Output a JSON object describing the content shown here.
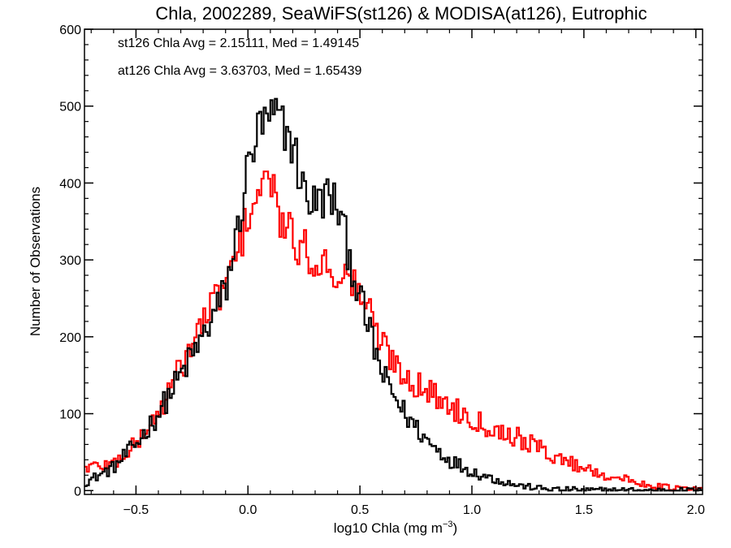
{
  "chart_data": {
    "type": "line",
    "title": "Chla, 2002289, SeaWiFS(st126) & MODISA(at126), Eutrophic",
    "xlabel_main": "log10 Chla (mg m",
    "xlabel_exp": "−3",
    "xlabel_close": ")",
    "ylabel": "Number of Observations",
    "xlim": [
      -0.73,
      2.03
    ],
    "ylim": [
      -5,
      600
    ],
    "xticks": [
      -0.5,
      0.0,
      0.5,
      1.0,
      1.5,
      2.0
    ],
    "xtick_labels": [
      "−0.5",
      "0.0",
      "0.5",
      "1.0",
      "1.5",
      "2.0"
    ],
    "yticks": [
      0,
      100,
      200,
      300,
      400,
      500,
      600
    ],
    "ytick_labels": [
      "0",
      "100",
      "200",
      "300",
      "400",
      "500",
      "600"
    ],
    "grid": false,
    "bin_width": 0.01,
    "annotations": [
      {
        "text": "st126 Chla Avg = 2.15111, Med = 1.49145",
        "color": "#000000"
      },
      {
        "text": "at126 Chla Avg = 3.63703, Med = 1.65439",
        "color": "#ff0000"
      }
    ],
    "series": [
      {
        "color": "#000000",
        "profile_x": [
          -0.73,
          -0.6,
          -0.5,
          -0.4,
          -0.3,
          -0.2,
          -0.1,
          -0.05,
          0.0,
          0.05,
          0.1,
          0.15,
          0.2,
          0.25,
          0.3,
          0.35,
          0.4,
          0.45,
          0.5,
          0.55,
          0.6,
          0.7,
          0.8,
          0.9,
          1.0,
          1.1,
          1.2,
          1.3,
          1.4,
          1.5,
          1.6,
          2.03
        ],
        "profile_y": [
          10,
          30,
          60,
          100,
          150,
          200,
          260,
          330,
          420,
          470,
          480,
          480,
          450,
          390,
          370,
          385,
          370,
          310,
          250,
          200,
          150,
          100,
          65,
          40,
          25,
          15,
          7,
          3,
          1,
          0.5,
          0.2,
          0
        ],
        "notes_peak": {
          "x": 0.14,
          "y": 495
        }
      },
      {
        "color": "#ff0000",
        "profile_x": [
          -0.73,
          -0.6,
          -0.5,
          -0.4,
          -0.3,
          -0.2,
          -0.1,
          -0.05,
          0.0,
          0.05,
          0.1,
          0.15,
          0.2,
          0.3,
          0.4,
          0.5,
          0.6,
          0.7,
          0.8,
          0.9,
          1.0,
          1.1,
          1.2,
          1.3,
          1.4,
          1.5,
          1.6,
          1.7,
          1.8,
          1.9,
          2.03
        ],
        "profile_y": [
          30,
          35,
          60,
          100,
          160,
          220,
          270,
          300,
          360,
          390,
          400,
          350,
          325,
          300,
          285,
          260,
          190,
          150,
          130,
          110,
          95,
          80,
          70,
          55,
          40,
          30,
          20,
          13,
          7,
          3,
          1
        ],
        "notes_peak": {
          "x": 0.08,
          "y": 415
        }
      }
    ]
  }
}
